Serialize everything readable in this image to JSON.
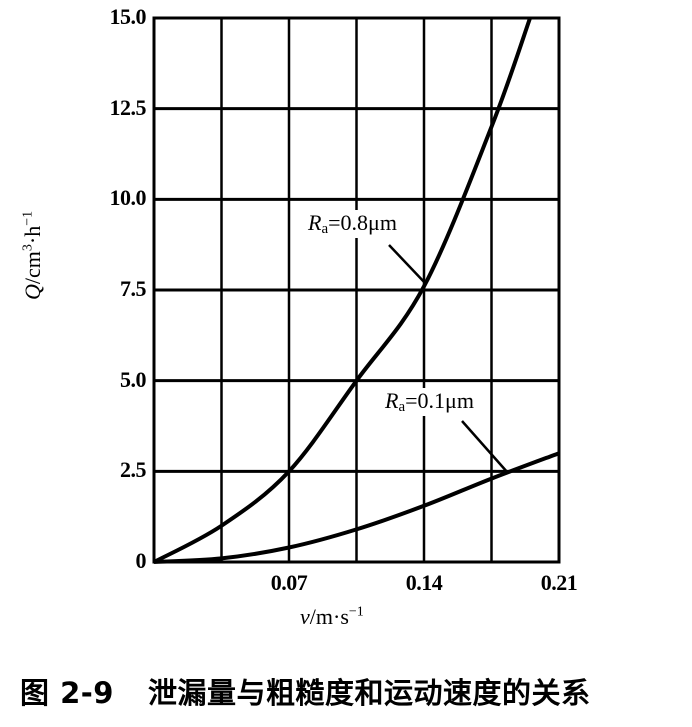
{
  "chart_data": {
    "type": "line",
    "title": "",
    "xlabel": "v/m·s⁻¹",
    "ylabel": "Q/cm³·h⁻¹",
    "xlim": [
      0,
      0.21
    ],
    "ylim": [
      0,
      15.0
    ],
    "grid": true,
    "x_ticks": [
      "0.07",
      "0.14",
      "0.21"
    ],
    "y_ticks": [
      "0",
      "2.5",
      "5.0",
      "7.5",
      "10.0",
      "12.5",
      "15.0"
    ],
    "x": [
      0,
      0.035,
      0.07,
      0.105,
      0.14,
      0.175,
      0.21
    ],
    "series": [
      {
        "name": "Ra=0.8μm",
        "x": [
          0,
          0.035,
          0.07,
          0.105,
          0.14,
          0.175,
          0.195
        ],
        "values": [
          0,
          1.0,
          2.5,
          5.0,
          7.6,
          12.0,
          15.0
        ]
      },
      {
        "name": "Ra=0.1μm",
        "x": [
          0,
          0.035,
          0.07,
          0.105,
          0.14,
          0.175,
          0.21
        ],
        "values": [
          0,
          0.1,
          0.4,
          0.9,
          1.55,
          2.3,
          3.0
        ]
      }
    ],
    "annotations": [
      {
        "label_main": "R",
        "label_sub": "a",
        "label_rest": "=0.8μm",
        "points_to": [
          0.14,
          7.6
        ]
      },
      {
        "label_main": "R",
        "label_sub": "a",
        "label_rest": "=0.1μm",
        "points_to": [
          0.185,
          2.5
        ]
      }
    ],
    "legend": "none (inline annotations)"
  },
  "axis": {
    "xlabel_var": "v",
    "xlabel_unit": "/m·s",
    "xlabel_exp": "−1",
    "ylabel_var": "Q",
    "ylabel_unit": "/cm",
    "ylabel_exp1": "3",
    "ylabel_mid": "·h",
    "ylabel_exp2": "−1"
  },
  "caption": {
    "number": "图 2-9",
    "text": "泄漏量与粗糙度和运动速度的关系"
  }
}
